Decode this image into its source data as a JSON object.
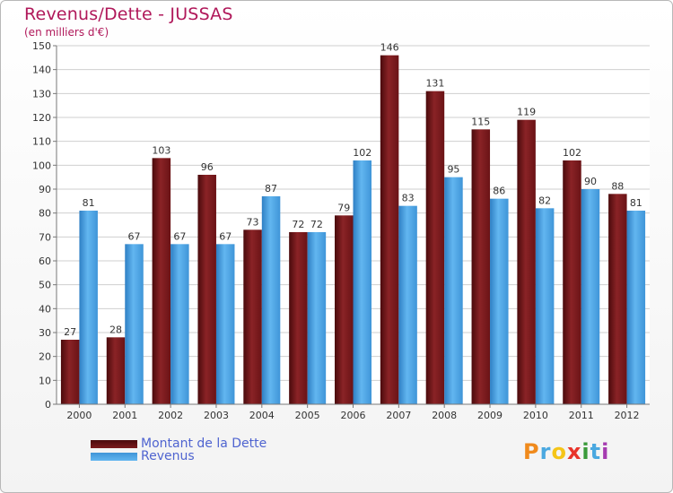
{
  "chart_data": {
    "type": "bar",
    "title": "Revenus/Dette - JUSSAS",
    "subtitle": "(en milliers d'€)",
    "xlabel": "",
    "ylabel": "",
    "ylim": [
      0,
      150
    ],
    "yticks": [
      0,
      10,
      20,
      30,
      40,
      50,
      60,
      70,
      80,
      90,
      100,
      110,
      120,
      130,
      140,
      150
    ],
    "grid": true,
    "categories": [
      "2000",
      "2001",
      "2002",
      "2003",
      "2004",
      "2005",
      "2006",
      "2007",
      "2008",
      "2009",
      "2010",
      "2011",
      "2012"
    ],
    "series": [
      {
        "name": "Montant de la Dette",
        "color": "#7a1a1d",
        "values": [
          27,
          28,
          103,
          96,
          73,
          72,
          79,
          146,
          131,
          115,
          119,
          102,
          88
        ]
      },
      {
        "name": "Revenus",
        "color": "#4ea3e3",
        "values": [
          81,
          67,
          67,
          67,
          87,
          72,
          102,
          83,
          95,
          86,
          82,
          90,
          81
        ]
      }
    ],
    "legend_position": "bottom-left"
  },
  "legend": {
    "debt_label": "Montant de la Dette",
    "revenue_label": "Revenus"
  },
  "logo": {
    "letters": [
      "P",
      "r",
      "o",
      "x",
      "i",
      "t",
      "i"
    ],
    "colors": [
      "#f08a1c",
      "#4aa8e0",
      "#f5c518",
      "#e8342a",
      "#3a9a3a",
      "#4aa8e0",
      "#a53bb0"
    ]
  }
}
